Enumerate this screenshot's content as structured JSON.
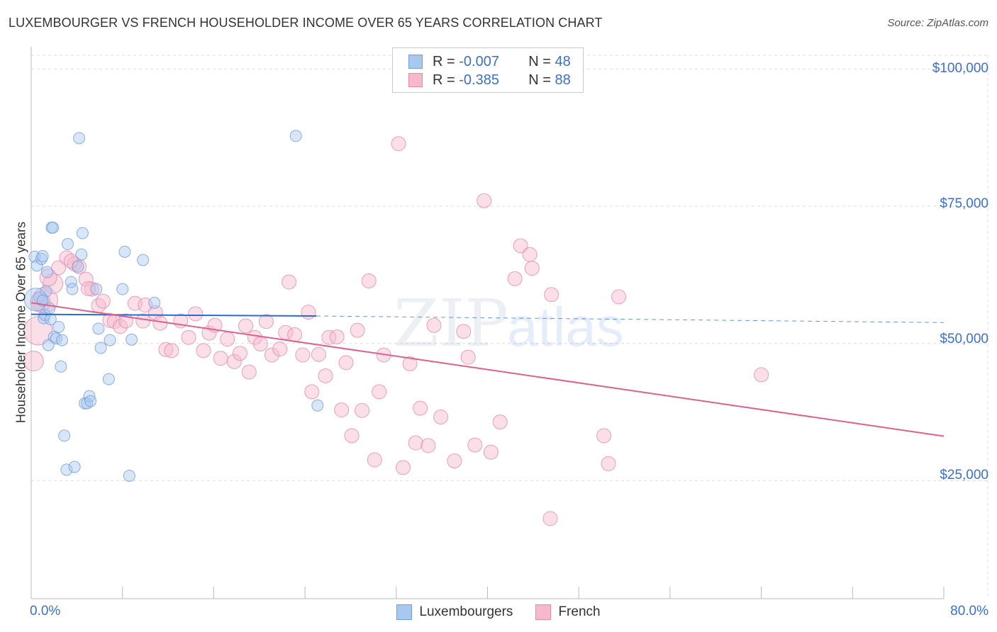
{
  "title": "LUXEMBOURGER VS FRENCH HOUSEHOLDER INCOME OVER 65 YEARS CORRELATION CHART",
  "source": "Source: ZipAtlas.com",
  "watermark": {
    "zip": "ZIP",
    "atlas": "atlas"
  },
  "legend_top": {
    "rows": [
      {
        "r_label": "R = ",
        "r_value": "-0.007",
        "n_label": "N = ",
        "n_value": "48"
      },
      {
        "r_label": "R = ",
        "r_value": "-0.385",
        "n_label": "N = ",
        "n_value": "88"
      }
    ]
  },
  "legend_bottom": {
    "items": [
      "Luxembourgers",
      "French"
    ]
  },
  "colors": {
    "lux_fill": "#a8c8f0",
    "lux_stroke": "#6f9ee0",
    "lux_line": "#2a6ad4",
    "fr_fill": "#f7b8cc",
    "fr_stroke": "#e88aa8",
    "fr_line": "#e0608c",
    "axis_text": "#3a6fd8",
    "grid": "#dddddd"
  },
  "chart_data": {
    "type": "scatter",
    "title": "LUXEMBOURGER VS FRENCH HOUSEHOLDER INCOME OVER 65 YEARS CORRELATION CHART",
    "xlabel": "",
    "ylabel": "Householder Income Over 65 years",
    "x_tick_labels": [
      "0.0%",
      "80.0%"
    ],
    "y_tick_labels": [
      "$25,000",
      "$50,000",
      "$75,000",
      "$100,000"
    ],
    "y_ticks": [
      25000,
      50000,
      75000,
      100000
    ],
    "xlim": [
      0,
      80
    ],
    "ylim": [
      3500,
      102500
    ],
    "grid": true,
    "legend_position": "top-center",
    "series": [
      {
        "name": "Luxembourgers",
        "r": -0.007,
        "n": 48,
        "trend": {
          "x": [
            0,
            25
          ],
          "y": [
            55300,
            55000
          ],
          "dashed_to": [
            80,
            53800
          ]
        },
        "points": [
          [
            0.3,
            65800
          ],
          [
            0.5,
            64200
          ],
          [
            0.7,
            58400
          ],
          [
            0.9,
            65400
          ],
          [
            1.0,
            65900
          ],
          [
            1.1,
            54600
          ],
          [
            1.2,
            55200
          ],
          [
            1.3,
            59500
          ],
          [
            1.4,
            63000
          ],
          [
            1.5,
            49700
          ],
          [
            1.6,
            56400
          ],
          [
            1.7,
            54400
          ],
          [
            1.8,
            71100
          ],
          [
            1.9,
            71100
          ],
          [
            2.0,
            51200
          ],
          [
            2.2,
            50900
          ],
          [
            2.4,
            53000
          ],
          [
            2.6,
            45800
          ],
          [
            2.7,
            50600
          ],
          [
            2.9,
            33200
          ],
          [
            3.1,
            27000
          ],
          [
            3.2,
            68100
          ],
          [
            3.5,
            61200
          ],
          [
            3.6,
            59900
          ],
          [
            3.8,
            27500
          ],
          [
            4.1,
            64000
          ],
          [
            4.2,
            87400
          ],
          [
            4.4,
            66200
          ],
          [
            4.5,
            70100
          ],
          [
            4.7,
            39100
          ],
          [
            4.9,
            39100
          ],
          [
            5.1,
            40400
          ],
          [
            5.2,
            39500
          ],
          [
            5.7,
            59900
          ],
          [
            5.9,
            52700
          ],
          [
            6.1,
            49200
          ],
          [
            6.8,
            43500
          ],
          [
            6.9,
            50600
          ],
          [
            8.0,
            59900
          ],
          [
            8.2,
            66700
          ],
          [
            8.6,
            25900
          ],
          [
            8.8,
            50700
          ],
          [
            9.8,
            65200
          ],
          [
            10.8,
            57400
          ],
          [
            23.2,
            87800
          ],
          [
            25.1,
            38700
          ],
          [
            0.4,
            58000
          ],
          [
            1.0,
            57800
          ]
        ],
        "sizes": [
          8,
          8,
          8,
          8,
          8,
          8,
          8,
          8,
          8,
          8,
          8,
          8,
          8,
          8,
          8,
          8,
          8,
          8,
          8,
          8,
          8,
          8,
          8,
          8,
          8,
          8,
          8,
          8,
          8,
          8,
          8,
          8,
          8,
          8,
          8,
          8,
          8,
          8,
          8,
          8,
          8,
          8,
          8,
          8,
          8,
          8,
          16,
          8
        ]
      },
      {
        "name": "French",
        "r": -0.385,
        "n": 88,
        "trend": {
          "x": [
            0,
            80
          ],
          "y": [
            57400,
            33100
          ]
        },
        "points": [
          [
            0.2,
            46800
          ],
          [
            0.6,
            52300
          ],
          [
            1.2,
            57900
          ],
          [
            1.9,
            60900
          ],
          [
            2.4,
            63800
          ],
          [
            3.1,
            65600
          ],
          [
            3.8,
            64500
          ],
          [
            4.2,
            64000
          ],
          [
            4.8,
            61700
          ],
          [
            5.3,
            59900
          ],
          [
            5.9,
            56900
          ],
          [
            6.3,
            57700
          ],
          [
            6.9,
            54200
          ],
          [
            7.3,
            54000
          ],
          [
            7.8,
            53100
          ],
          [
            8.3,
            54100
          ],
          [
            9.1,
            57300
          ],
          [
            9.8,
            54100
          ],
          [
            10.0,
            57000
          ],
          [
            10.9,
            55600
          ],
          [
            11.3,
            53700
          ],
          [
            11.8,
            48900
          ],
          [
            12.3,
            48700
          ],
          [
            13.1,
            54100
          ],
          [
            13.8,
            51100
          ],
          [
            14.4,
            55400
          ],
          [
            15.1,
            48700
          ],
          [
            15.6,
            51900
          ],
          [
            16.1,
            53300
          ],
          [
            16.6,
            47300
          ],
          [
            17.2,
            50800
          ],
          [
            17.8,
            46700
          ],
          [
            18.3,
            48200
          ],
          [
            18.8,
            53200
          ],
          [
            19.1,
            44800
          ],
          [
            19.6,
            51100
          ],
          [
            20.1,
            49900
          ],
          [
            20.6,
            54000
          ],
          [
            21.1,
            47900
          ],
          [
            21.8,
            49000
          ],
          [
            22.3,
            52000
          ],
          [
            22.6,
            61200
          ],
          [
            23.1,
            51600
          ],
          [
            23.8,
            47900
          ],
          [
            24.3,
            55700
          ],
          [
            24.6,
            41200
          ],
          [
            25.2,
            48000
          ],
          [
            25.8,
            44100
          ],
          [
            26.1,
            51100
          ],
          [
            26.8,
            51200
          ],
          [
            27.2,
            37900
          ],
          [
            27.6,
            46500
          ],
          [
            28.1,
            33200
          ],
          [
            28.6,
            52400
          ],
          [
            29.0,
            37800
          ],
          [
            29.6,
            61400
          ],
          [
            30.1,
            28800
          ],
          [
            30.5,
            41200
          ],
          [
            30.9,
            47900
          ],
          [
            32.2,
            86400
          ],
          [
            32.6,
            27400
          ],
          [
            33.2,
            46300
          ],
          [
            33.7,
            31900
          ],
          [
            34.1,
            38200
          ],
          [
            34.8,
            31400
          ],
          [
            35.3,
            53300
          ],
          [
            35.9,
            36600
          ],
          [
            37.1,
            28600
          ],
          [
            37.9,
            52200
          ],
          [
            38.3,
            47500
          ],
          [
            38.9,
            31500
          ],
          [
            39.7,
            76000
          ],
          [
            40.3,
            30200
          ],
          [
            41.1,
            35700
          ],
          [
            42.4,
            61800
          ],
          [
            42.9,
            67800
          ],
          [
            43.7,
            66200
          ],
          [
            43.9,
            63700
          ],
          [
            45.6,
            58900
          ],
          [
            45.5,
            18100
          ],
          [
            50.2,
            33200
          ],
          [
            50.6,
            28100
          ],
          [
            51.5,
            58500
          ],
          [
            64.0,
            44300
          ],
          [
            0.8,
            57500
          ],
          [
            1.5,
            62000
          ],
          [
            3.5,
            65000
          ],
          [
            5.0,
            60000
          ]
        ],
        "sizes": [
          14,
          20,
          18,
          14,
          10,
          10,
          10,
          10,
          10,
          10,
          10,
          10,
          10,
          10,
          10,
          10,
          10,
          10,
          10,
          10,
          10,
          10,
          10,
          10,
          10,
          10,
          10,
          10,
          10,
          10,
          10,
          10,
          10,
          10,
          10,
          10,
          10,
          10,
          10,
          10,
          10,
          10,
          10,
          10,
          10,
          10,
          10,
          10,
          10,
          10,
          10,
          10,
          10,
          10,
          10,
          10,
          10,
          10,
          10,
          10,
          10,
          10,
          10,
          10,
          10,
          10,
          10,
          10,
          10,
          10,
          10,
          10,
          10,
          10,
          10,
          10,
          10,
          10,
          10,
          10,
          10,
          10,
          10,
          10,
          14,
          12,
          10,
          10
        ]
      }
    ]
  }
}
